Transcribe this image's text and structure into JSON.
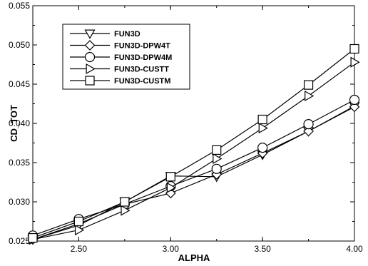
{
  "chart_data": {
    "type": "line",
    "xlabel": "ALPHA",
    "ylabel": "CD_TOT",
    "xlim": [
      2.25,
      4.0
    ],
    "ylim": [
      0.025,
      0.055
    ],
    "x_ticks": [
      "2.50",
      "3.00",
      "3.50",
      "4.00"
    ],
    "y_ticks": [
      "0.025",
      "0.030",
      "0.035",
      "0.040",
      "0.045",
      "0.050",
      "0.055"
    ],
    "legend_position": "top-left",
    "grid": false,
    "x": [
      2.25,
      2.5,
      2.75,
      3.0,
      3.25,
      3.5,
      3.75,
      4.0
    ],
    "series": [
      {
        "name": "FUN3D",
        "marker": "triangle-down",
        "values": [
          0.0252,
          0.027,
          0.03,
          0.0333,
          0.0332,
          0.036,
          0.039,
          0.0422
        ]
      },
      {
        "name": "FUN3D-DPW4T",
        "marker": "diamond",
        "values": [
          0.0252,
          0.0272,
          0.0297,
          0.0311,
          0.0335,
          0.0362,
          0.039,
          0.0421
        ]
      },
      {
        "name": "FUN3D-DPW4M",
        "marker": "circle",
        "values": [
          0.0257,
          0.0278,
          0.0297,
          0.032,
          0.0342,
          0.0369,
          0.0399,
          0.043
        ]
      },
      {
        "name": "FUN3D-CUSTT",
        "marker": "triangle-right",
        "values": [
          0.0252,
          0.0264,
          0.0289,
          0.0318,
          0.0355,
          0.0394,
          0.0435,
          0.0478
        ]
      },
      {
        "name": "FUN3D-CUSTM",
        "marker": "square",
        "values": [
          0.0254,
          0.0275,
          0.03,
          0.0332,
          0.0366,
          0.0405,
          0.0449,
          0.0495
        ]
      }
    ]
  }
}
